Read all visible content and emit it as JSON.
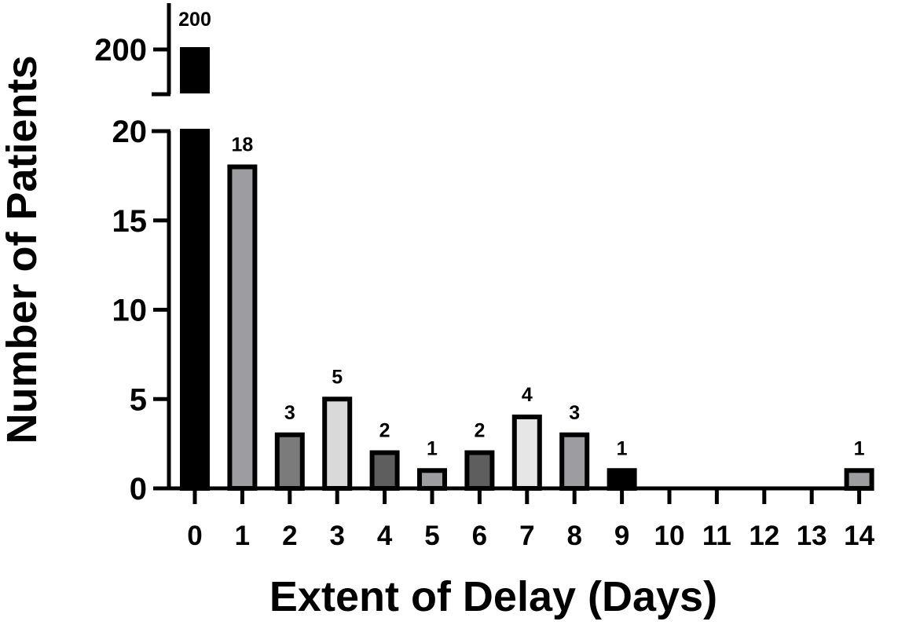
{
  "chart_data": {
    "type": "bar",
    "title": "",
    "xlabel": "Extent of Delay (Days)",
    "ylabel": "Number of Patients",
    "categories": [
      "0",
      "1",
      "2",
      "3",
      "4",
      "5",
      "6",
      "7",
      "8",
      "9",
      "10",
      "11",
      "12",
      "13",
      "14"
    ],
    "values": [
      200,
      18,
      3,
      5,
      2,
      1,
      2,
      4,
      3,
      1,
      0,
      0,
      0,
      0,
      1
    ],
    "data_labels": [
      "200",
      "18",
      "3",
      "5",
      "2",
      "1",
      "2",
      "4",
      "3",
      "1",
      "",
      "",
      "",
      "",
      "1"
    ],
    "bar_colors": [
      "#000000",
      "#9c9ca1",
      "#7b7b7b",
      "#d9d9d9",
      "#5e5e5e",
      "#9c9ca1",
      "#5e5e5e",
      "#e6e6e6",
      "#9c9ca1",
      "#000000",
      "#ffffff",
      "#ffffff",
      "#ffffff",
      "#ffffff",
      "#9c9ca1"
    ],
    "y_axis": {
      "broken": true,
      "lower_segment": {
        "ylim": [
          0,
          20
        ],
        "ticks": [
          "0",
          "5",
          "10",
          "15",
          "20"
        ]
      },
      "upper_segment": {
        "ticks": [
          "200"
        ]
      }
    },
    "grid": false,
    "legend": "none"
  }
}
